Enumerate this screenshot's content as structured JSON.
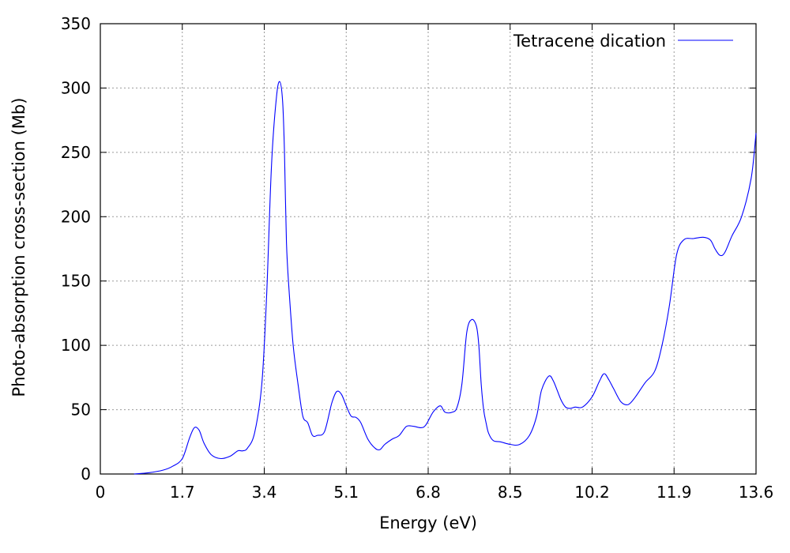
{
  "chart_data": {
    "type": "line",
    "title": "",
    "xlabel": "Energy (eV)",
    "ylabel": "Photo-absorption cross-section (Mb)",
    "xlim": [
      0,
      13.6
    ],
    "ylim": [
      0,
      350
    ],
    "xticks": [
      0,
      1.7,
      3.4,
      5.1,
      6.8,
      8.5,
      10.2,
      11.9,
      13.6
    ],
    "xtick_labels": [
      "0",
      "1.7",
      "3.4",
      "5.1",
      "6.8",
      "8.5",
      "10.2",
      "11.9",
      "13.6"
    ],
    "yticks": [
      0,
      50,
      100,
      150,
      200,
      250,
      300,
      350
    ],
    "ytick_labels": [
      "0",
      "50",
      "100",
      "150",
      "200",
      "250",
      "300",
      "350"
    ],
    "grid": true,
    "legend_position": "top-right",
    "series": [
      {
        "name": "Tetracene dication",
        "color": "#0000ff",
        "x": [
          0.7,
          1.0,
          1.3,
          1.5,
          1.7,
          1.85,
          1.95,
          2.05,
          2.15,
          2.3,
          2.5,
          2.7,
          2.85,
          2.95,
          3.05,
          3.2,
          3.35,
          3.45,
          3.55,
          3.65,
          3.72,
          3.78,
          3.82,
          3.86,
          3.92,
          4.0,
          4.1,
          4.2,
          4.3,
          4.4,
          4.5,
          4.65,
          4.8,
          4.9,
          5.0,
          5.1,
          5.2,
          5.3,
          5.4,
          5.55,
          5.7,
          5.8,
          5.9,
          6.05,
          6.2,
          6.35,
          6.5,
          6.65,
          6.75,
          6.9,
          7.05,
          7.15,
          7.3,
          7.4,
          7.5,
          7.6,
          7.7,
          7.8,
          7.85,
          7.9,
          7.95,
          8.0,
          8.05,
          8.15,
          8.3,
          8.5,
          8.7,
          8.9,
          9.05,
          9.15,
          9.3,
          9.4,
          9.55,
          9.65,
          9.75,
          9.85,
          10.0,
          10.2,
          10.35,
          10.45,
          10.55,
          10.65,
          10.8,
          10.95,
          11.1,
          11.3,
          11.5,
          11.65,
          11.8,
          11.95,
          12.1,
          12.3,
          12.5,
          12.65,
          12.75,
          12.85,
          12.95,
          13.1,
          13.3,
          13.5,
          13.6
        ],
        "y": [
          0,
          1,
          3,
          6,
          12,
          28,
          36,
          34,
          24,
          15,
          12,
          14,
          18,
          18,
          20,
          32,
          70,
          140,
          240,
          292,
          305,
          290,
          250,
          180,
          140,
          100,
          70,
          45,
          40,
          30,
          30,
          33,
          55,
          64,
          62,
          53,
          45,
          44,
          40,
          27,
          20,
          19,
          23,
          27,
          30,
          37,
          37,
          36,
          38,
          48,
          53,
          48,
          48,
          52,
          70,
          110,
          120,
          115,
          100,
          70,
          50,
          40,
          32,
          26,
          25,
          23,
          23,
          30,
          45,
          65,
          76,
          72,
          58,
          52,
          51,
          52,
          52,
          60,
          72,
          78,
          73,
          66,
          56,
          54,
          60,
          71,
          80,
          100,
          130,
          170,
          182,
          183,
          184,
          182,
          175,
          170,
          172,
          185,
          200,
          230,
          265
        ]
      }
    ]
  }
}
